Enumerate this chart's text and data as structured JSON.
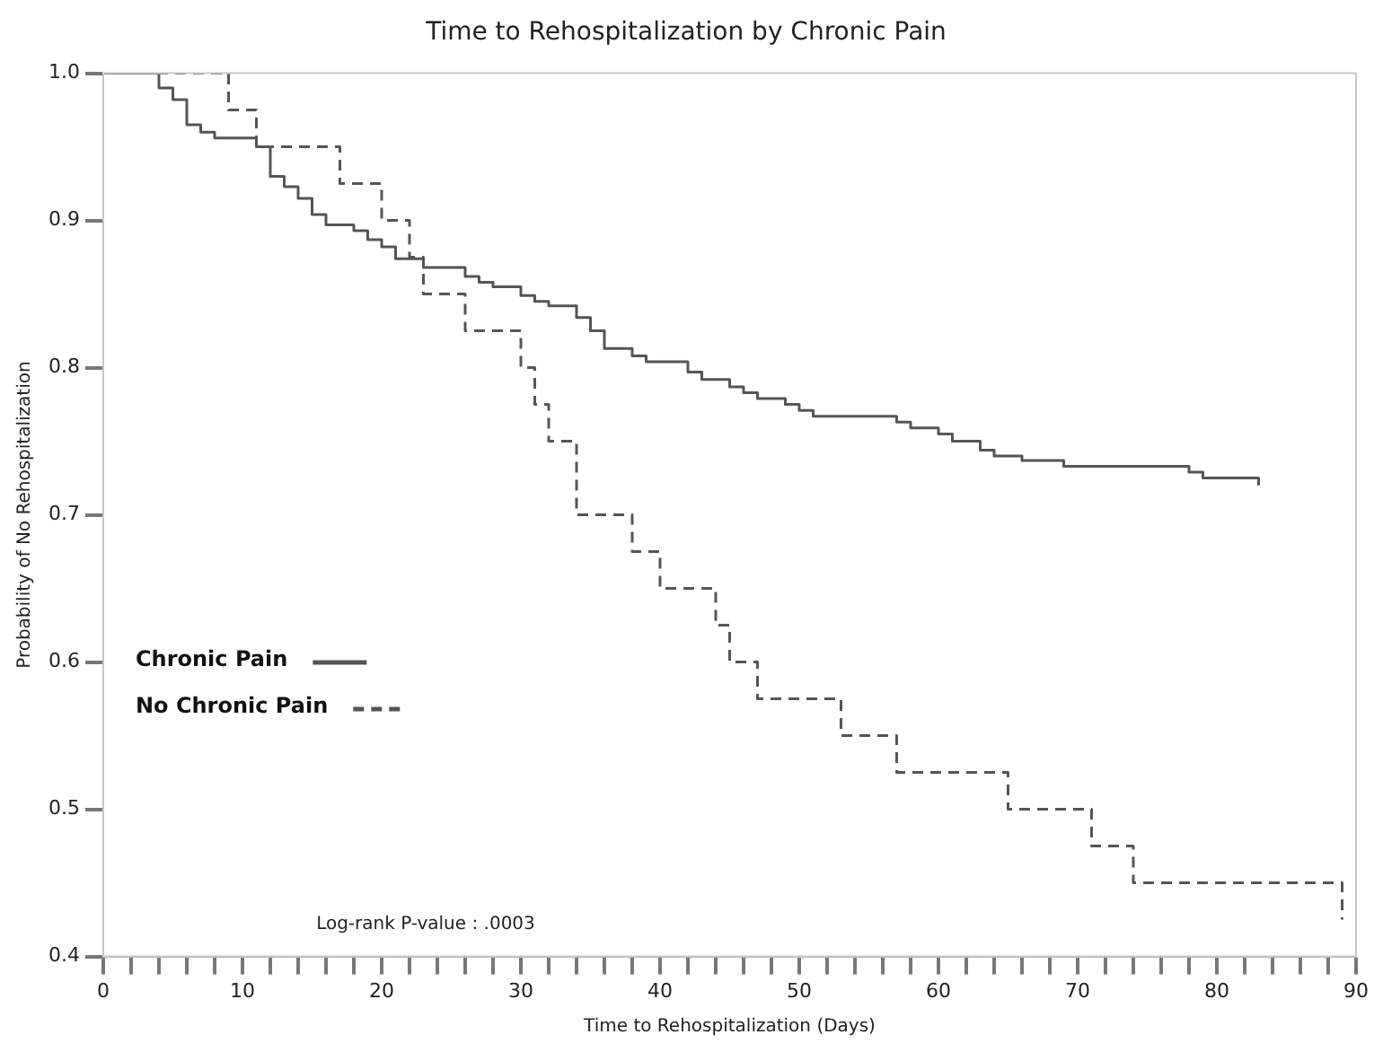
{
  "chart_data": {
    "type": "step",
    "title": "Time to Rehospitalization by Chronic Pain",
    "xlabel": "Time to Rehospitalization (Days)",
    "ylabel": "Probability of No Rehospitalization",
    "annotations": [
      "Log-rank P-value : .0003"
    ],
    "xlim": [
      0,
      90
    ],
    "xticks": [
      0,
      {
        "value": 2,
        "label": null
      },
      {
        "value": 4,
        "label": null
      },
      {
        "value": 6,
        "label": null
      },
      {
        "value": 8,
        "label": null
      },
      10,
      {
        "value": 12,
        "label": null
      },
      {
        "value": 14,
        "label": null
      },
      {
        "value": 16,
        "label": null
      },
      {
        "value": 18,
        "label": null
      },
      20,
      {
        "value": 22,
        "label": null
      },
      {
        "value": 24,
        "label": null
      },
      {
        "value": 26,
        "label": null
      },
      {
        "value": 28,
        "label": null
      },
      30,
      {
        "value": 32,
        "label": null
      },
      {
        "value": 34,
        "label": null
      },
      {
        "value": 36,
        "label": null
      },
      {
        "value": 38,
        "label": null
      },
      40,
      {
        "value": 42,
        "label": null
      },
      {
        "value": 44,
        "label": null
      },
      {
        "value": 46,
        "label": null
      },
      {
        "value": 48,
        "label": null
      },
      50,
      {
        "value": 52,
        "label": null
      },
      {
        "value": 54,
        "label": null
      },
      {
        "value": 56,
        "label": null
      },
      {
        "value": 58,
        "label": null
      },
      60,
      {
        "value": 62,
        "label": null
      },
      {
        "value": 64,
        "label": null
      },
      {
        "value": 66,
        "label": null
      },
      {
        "value": 68,
        "label": null
      },
      70,
      {
        "value": 72,
        "label": null
      },
      {
        "value": 74,
        "label": null
      },
      {
        "value": 76,
        "label": null
      },
      {
        "value": 78,
        "label": null
      },
      80,
      {
        "value": 82,
        "label": null
      },
      {
        "value": 84,
        "label": null
      },
      {
        "value": 86,
        "label": null
      },
      {
        "value": 88,
        "label": null
      },
      90
    ],
    "ylim": [
      0.4,
      1.0
    ],
    "yticks": [
      {
        "value": 0.4,
        "label": "0.4"
      },
      {
        "value": 0.5,
        "label": "0.5"
      },
      {
        "value": 0.6,
        "label": "0.6"
      },
      {
        "value": 0.7,
        "label": "0.7"
      },
      {
        "value": 0.8,
        "label": "0.8"
      },
      {
        "value": 0.9,
        "label": "0.9"
      },
      {
        "value": 1.0,
        "label": "1.0"
      }
    ],
    "grid": false,
    "legend": "left",
    "marker": "none",
    "series": [
      {
        "name": "Chronic Pain",
        "color": "#555555",
        "line_style": "solid",
        "x": [
          0,
          4,
          5,
          6,
          7,
          8,
          11,
          12,
          13,
          14,
          15,
          16,
          18,
          19,
          20,
          21,
          23,
          26,
          27,
          28,
          30,
          31,
          32,
          34,
          35,
          36,
          38,
          39,
          42,
          43,
          45,
          46,
          47,
          49,
          50,
          51,
          57,
          58,
          60,
          61,
          63,
          64,
          66,
          69,
          78,
          79,
          83
        ],
        "values": [
          1.0,
          0.99,
          0.982,
          0.965,
          0.96,
          0.956,
          0.95,
          0.93,
          0.923,
          0.915,
          0.904,
          0.897,
          0.893,
          0.887,
          0.882,
          0.874,
          0.868,
          0.862,
          0.858,
          0.855,
          0.849,
          0.845,
          0.842,
          0.834,
          0.825,
          0.813,
          0.808,
          0.804,
          0.797,
          0.792,
          0.787,
          0.783,
          0.779,
          0.775,
          0.771,
          0.767,
          0.763,
          0.759,
          0.755,
          0.75,
          0.744,
          0.74,
          0.737,
          0.733,
          0.729,
          0.725,
          0.72
        ]
      },
      {
        "name": "No Chronic Pain",
        "color": "#555555",
        "line_style": "dashed",
        "x": [
          0,
          9,
          11,
          17,
          20,
          22,
          23,
          26,
          30,
          31,
          32,
          34,
          38,
          40,
          44,
          45,
          47,
          53,
          57,
          65,
          71,
          74,
          89
        ],
        "values": [
          1.0,
          0.975,
          0.95,
          0.925,
          0.9,
          0.875,
          0.85,
          0.825,
          0.8,
          0.775,
          0.75,
          0.7,
          0.675,
          0.65,
          0.625,
          0.6,
          0.575,
          0.55,
          0.525,
          0.5,
          0.475,
          0.45,
          0.425
        ]
      }
    ]
  }
}
